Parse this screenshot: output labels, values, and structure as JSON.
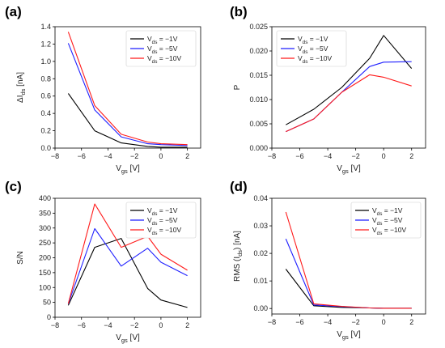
{
  "figure": {
    "panels": [
      "(a)",
      "(b)",
      "(c)",
      "(d)"
    ]
  },
  "chart_data": [
    {
      "panel": "(a)",
      "type": "line",
      "xlabel": "Vgs [V]",
      "ylabel": "ΔIds [nA]",
      "xlim": [
        -8,
        3
      ],
      "ylim": [
        0,
        1.4
      ],
      "xticks": [
        "−8",
        "−6",
        "−4",
        "−2",
        "0",
        "2"
      ],
      "yticks": [
        "0.0",
        "0.2",
        "0.4",
        "0.6",
        "0.8",
        "1.0",
        "1.2",
        "1.4"
      ],
      "legend_position": "top-right",
      "x": [
        -7,
        -5,
        -3,
        -1,
        0,
        2
      ],
      "series": [
        {
          "name": "Vds = −1V",
          "color": "#000000",
          "values": [
            0.63,
            0.2,
            0.06,
            0.02,
            0.01,
            0.01
          ]
        },
        {
          "name": "Vds = −5V",
          "color": "#1f1fff",
          "values": [
            1.21,
            0.44,
            0.13,
            0.05,
            0.04,
            0.03
          ]
        },
        {
          "name": "Vds = −10V",
          "color": "#ff1a1a",
          "values": [
            1.34,
            0.49,
            0.16,
            0.07,
            0.05,
            0.04
          ]
        }
      ]
    },
    {
      "panel": "(b)",
      "type": "line",
      "xlabel": "Vgs [V]",
      "ylabel": "P",
      "xlim": [
        -8,
        3
      ],
      "ylim": [
        0,
        0.025
      ],
      "xticks": [
        "−8",
        "−6",
        "−4",
        "−2",
        "0",
        "2"
      ],
      "yticks": [
        "0.000",
        "0.005",
        "0.010",
        "0.015",
        "0.020",
        "0.025"
      ],
      "legend_position": "top-left",
      "x": [
        -7,
        -5,
        -3,
        -1,
        0,
        2
      ],
      "series": [
        {
          "name": "Vds = −1V",
          "color": "#000000",
          "values": [
            0.0048,
            0.008,
            0.0125,
            0.0185,
            0.0232,
            0.0164
          ]
        },
        {
          "name": "Vds = −5V",
          "color": "#1f1fff",
          "values": [
            0.0034,
            0.006,
            0.0115,
            0.0168,
            0.0177,
            0.0178
          ]
        },
        {
          "name": "Vds = −10V",
          "color": "#ff1a1a",
          "values": [
            0.0034,
            0.006,
            0.0115,
            0.0151,
            0.0146,
            0.0128
          ]
        }
      ]
    },
    {
      "panel": "(c)",
      "type": "line",
      "xlabel": "Vgs [V]",
      "ylabel": "S/N",
      "xlim": [
        -8,
        3
      ],
      "ylim": [
        0,
        400
      ],
      "xticks": [
        "−8",
        "−6",
        "−4",
        "−2",
        "0",
        "2"
      ],
      "yticks": [
        "0",
        "50",
        "100",
        "150",
        "200",
        "250",
        "300",
        "350",
        "400"
      ],
      "legend_position": "top-right",
      "x": [
        -7,
        -5,
        -3,
        -1,
        0,
        2
      ],
      "series": [
        {
          "name": "Vds = −1V",
          "color": "#000000",
          "values": [
            40,
            235,
            265,
            97,
            58,
            33
          ]
        },
        {
          "name": "Vds = −5V",
          "color": "#1f1fff",
          "values": [
            45,
            298,
            172,
            232,
            185,
            140
          ]
        },
        {
          "name": "Vds = −10V",
          "color": "#ff1a1a",
          "values": [
            46,
            381,
            235,
            272,
            212,
            158
          ]
        }
      ]
    },
    {
      "panel": "(d)",
      "type": "line",
      "xlabel": "Vgs [V]",
      "ylabel": "RMS (Ids) [nA]",
      "xlim": [
        -8,
        3
      ],
      "ylim": [
        -0.002,
        0.04
      ],
      "xticks": [
        "−8",
        "−6",
        "−4",
        "−2",
        "0",
        "2"
      ],
      "yticks": [
        "0.00",
        "0.01",
        "0.02",
        "0.03",
        "0.04"
      ],
      "legend_position": "top-right",
      "x": [
        -7,
        -5,
        -3,
        -1,
        0,
        2
      ],
      "series": [
        {
          "name": "Vds = −1V",
          "color": "#000000",
          "values": [
            0.0143,
            0.001,
            0.0004,
            0.0002,
            0.0001,
            0.0001
          ]
        },
        {
          "name": "Vds = −5V",
          "color": "#1f1fff",
          "values": [
            0.0253,
            0.0013,
            0.0007,
            0.0002,
            0.0001,
            0.0001
          ]
        },
        {
          "name": "Vds = −10V",
          "color": "#ff1a1a",
          "values": [
            0.035,
            0.0017,
            0.0008,
            0.0002,
            0.0001,
            0.0001
          ]
        }
      ]
    }
  ]
}
